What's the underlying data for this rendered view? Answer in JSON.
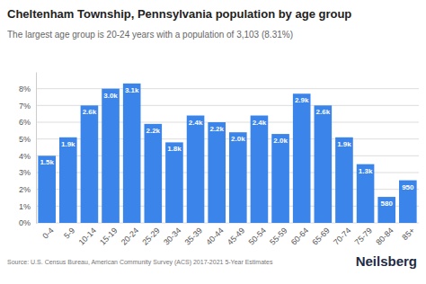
{
  "chart_data": {
    "type": "bar",
    "title": "Cheltenham Township, Pennsylvania population by age group",
    "subtitle": "The largest age group is 20-24 years with a population of 3,103 (8.31%)",
    "categories": [
      "0-4",
      "5-9",
      "10-14",
      "15-19",
      "20-24",
      "25-29",
      "30-34",
      "35-39",
      "40-44",
      "45-49",
      "50-54",
      "55-59",
      "60-64",
      "65-69",
      "70-74",
      "75-79",
      "80-84",
      "85+"
    ],
    "values": [
      4.0,
      5.1,
      7.0,
      8.0,
      8.31,
      5.9,
      4.8,
      6.4,
      6.0,
      5.4,
      6.4,
      5.3,
      7.7,
      7.0,
      5.1,
      3.5,
      1.55,
      2.54
    ],
    "population_labels": [
      "1.5k",
      "1.9k",
      "2.6k",
      "3.0k",
      "3.1k",
      "2.2k",
      "1.8k",
      "2.4k",
      "2.2k",
      "2.0k",
      "2.4k",
      "2.0k",
      "2.9k",
      "2.6k",
      "1.9k",
      "1.3k",
      "580",
      "950"
    ],
    "color": "#3b84ea",
    "ylim": [
      0,
      9
    ],
    "yticks": [
      {
        "value": 0,
        "label": "0%"
      },
      {
        "value": 1,
        "label": "1%"
      },
      {
        "value": 2,
        "label": "2%"
      },
      {
        "value": 3,
        "label": "3%"
      },
      {
        "value": 4,
        "label": "4%"
      },
      {
        "value": 5,
        "label": "5%"
      },
      {
        "value": 6,
        "label": "6%"
      },
      {
        "value": 7,
        "label": "7%"
      },
      {
        "value": 8,
        "label": "8%"
      }
    ],
    "grid": true,
    "annotations": [
      "Source: U.S. Census Bureau, American Community Survey (ACS) 2017-2021 5-Year Estimates",
      "Neilsberg"
    ]
  }
}
